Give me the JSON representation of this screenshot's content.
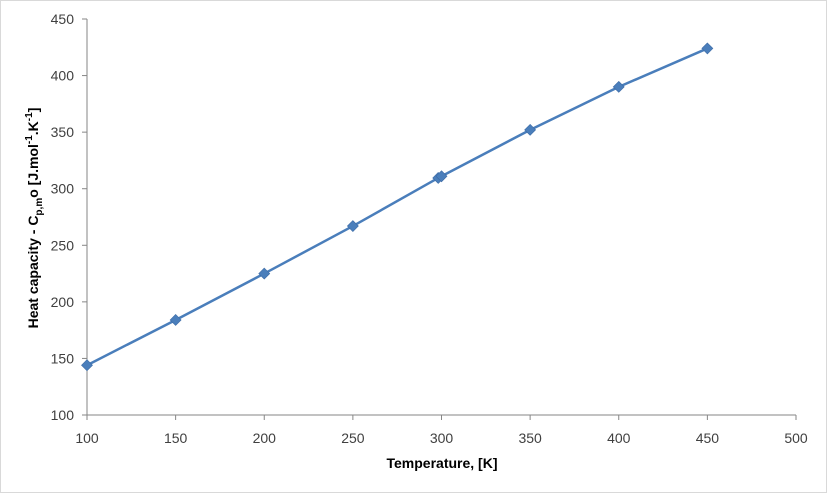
{
  "chart_data": {
    "type": "line",
    "title": "",
    "xlabel": "Temperature, [K]",
    "ylabel": {
      "base": "Heat capacity - C",
      "subscript": "p,m",
      "mid": "o [J.mol",
      "sup1": "-1",
      "mid2": ".K",
      "sup2": "-1",
      "end": "]"
    },
    "xlim": [
      100,
      500
    ],
    "ylim": [
      100,
      450
    ],
    "xticks": [
      100,
      150,
      200,
      250,
      300,
      350,
      400,
      450,
      500
    ],
    "yticks": [
      100,
      150,
      200,
      250,
      300,
      350,
      400,
      450
    ],
    "grid": false,
    "legend": "none",
    "series": [
      {
        "color": "#4a7ebb",
        "marker": "diamond",
        "x": [
          100,
          150,
          200,
          250,
          298.15,
          300,
          350,
          400,
          450
        ],
        "y": [
          144,
          184,
          225,
          267,
          309.5,
          311,
          352,
          390,
          424
        ]
      }
    ]
  }
}
